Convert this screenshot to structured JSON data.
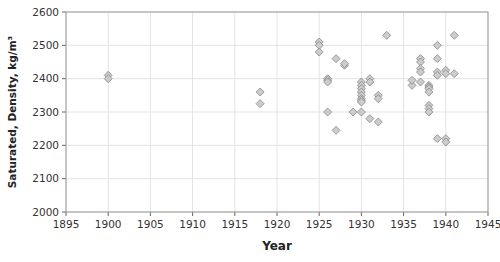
{
  "chart_data": {
    "type": "scatter",
    "x_label": "Year",
    "y_label": "Saturated, Density, kg/m³",
    "x": [
      1900,
      1900,
      1918,
      1918,
      1925,
      1925,
      1925,
      1926,
      1926,
      1926,
      1926,
      1927,
      1927,
      1928,
      1928,
      1929,
      1930,
      1930,
      1930,
      1930,
      1930,
      1930,
      1930,
      1930,
      1930,
      1931,
      1931,
      1931,
      1932,
      1932,
      1932,
      1933,
      1936,
      1936,
      1937,
      1937,
      1937,
      1937,
      1937,
      1938,
      1938,
      1938,
      1938,
      1938,
      1938,
      1938,
      1939,
      1939,
      1939,
      1939,
      1939,
      1940,
      1940,
      1940,
      1940,
      1941,
      1941
    ],
    "values": [
      2410,
      2400,
      2360,
      2325,
      2510,
      2500,
      2480,
      2400,
      2395,
      2390,
      2300,
      2460,
      2245,
      2440,
      2445,
      2300,
      2390,
      2380,
      2370,
      2360,
      2350,
      2340,
      2335,
      2330,
      2300,
      2400,
      2390,
      2280,
      2350,
      2340,
      2270,
      2530,
      2380,
      2395,
      2460,
      2450,
      2430,
      2420,
      2390,
      2380,
      2375,
      2370,
      2360,
      2320,
      2310,
      2300,
      2500,
      2460,
      2420,
      2410,
      2220,
      2425,
      2415,
      2220,
      2210,
      2530,
      2415
    ],
    "xlim": [
      1895,
      1945
    ],
    "ylim": [
      2000,
      2600
    ],
    "xticks": [
      1895,
      1900,
      1905,
      1910,
      1915,
      1920,
      1925,
      1930,
      1935,
      1940,
      1945
    ],
    "yticks": [
      2000,
      2100,
      2200,
      2300,
      2400,
      2500,
      2600
    ],
    "grid": true,
    "marker": "diamond",
    "color": "#cccccc"
  }
}
